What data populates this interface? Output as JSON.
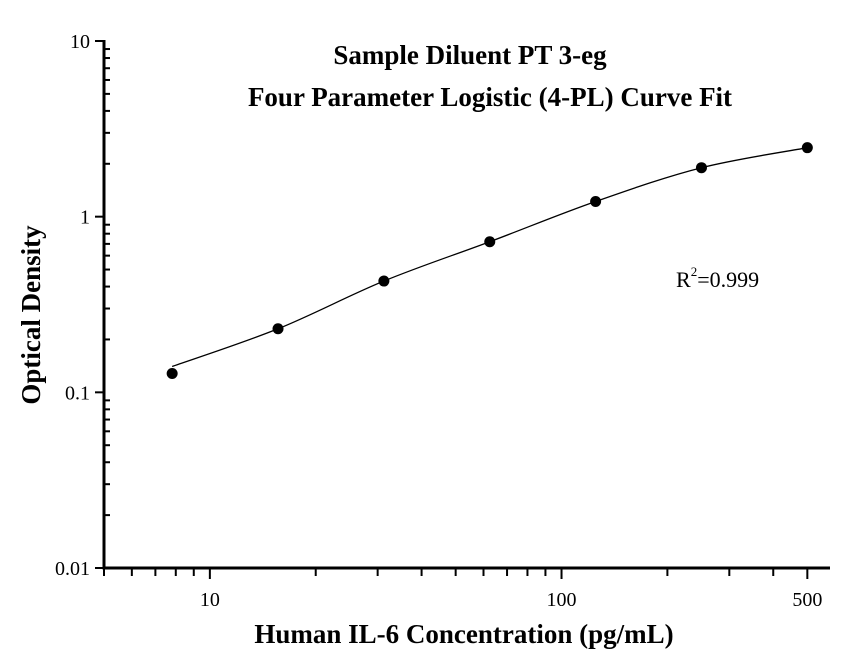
{
  "chart_data": {
    "type": "scatter",
    "title": [
      "Sample Diluent PT 3-eg",
      "Four Parameter Logistic (4-PL) Curve Fit"
    ],
    "xlabel": "Human IL-6 Concentration (pg/mL)",
    "ylabel": "Optical Density",
    "xscale": "log",
    "yscale": "log",
    "xlim": [
      5,
      580
    ],
    "ylim": [
      0.01,
      10
    ],
    "xticks": [
      {
        "value": 10,
        "label": "10"
      },
      {
        "value": 100,
        "label": "100"
      },
      {
        "value": 500,
        "label": "500"
      }
    ],
    "yticks": [
      {
        "value": 0.01,
        "label": "0.01"
      },
      {
        "value": 0.1,
        "label": "0.1"
      },
      {
        "value": 1,
        "label": "1"
      },
      {
        "value": 10,
        "label": "10"
      }
    ],
    "grid": false,
    "series": [
      {
        "x": [
          7.8125,
          15.625,
          31.25,
          62.5,
          125,
          250,
          500
        ],
        "y": [
          0.128,
          0.23,
          0.43,
          0.72,
          1.22,
          1.9,
          2.47
        ],
        "marker": "circle",
        "color": "#000000",
        "fit_line": "4-PL"
      }
    ],
    "annotation": {
      "prefix": "R",
      "superscript": "2",
      "text": "=0.999"
    }
  }
}
